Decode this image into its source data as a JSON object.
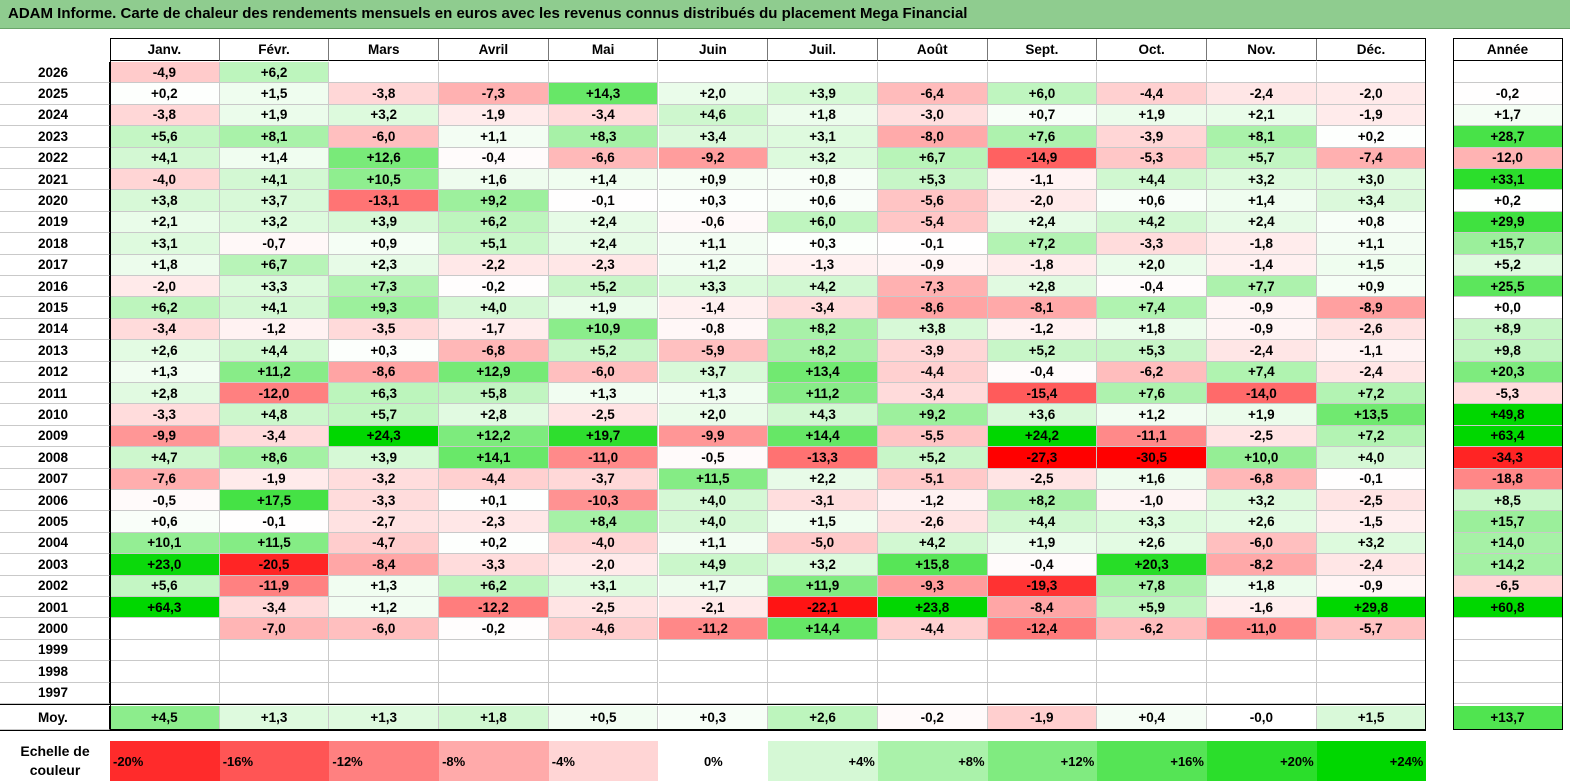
{
  "title": "ADAM Informe. Carte de chaleur des rendements mensuels en euros avec les revenus connus distribués du placement Mega Financial",
  "chart_data": {
    "type": "heatmap",
    "title": "ADAM Informe. Carte de chaleur des rendements mensuels en euros avec les revenus connus distribués du placement Mega Financial",
    "months": [
      "Janv.",
      "Févr.",
      "Mars",
      "Avril",
      "Mai",
      "Juin",
      "Juil.",
      "Août",
      "Sept.",
      "Oct.",
      "Nov.",
      "Déc."
    ],
    "year_header": "Année",
    "rows": [
      {
        "year": "2026",
        "months": [
          "-4,9",
          "+6,2",
          "",
          "",
          "",
          "",
          "",
          "",
          "",
          "",
          "",
          ""
        ],
        "annual": ""
      },
      {
        "year": "2025",
        "months": [
          "+0,2",
          "+1,5",
          "-3,8",
          "-7,3",
          "+14,3",
          "+2,0",
          "+3,9",
          "-6,4",
          "+6,0",
          "-4,4",
          "-2,4",
          "-2,0"
        ],
        "annual": "-0,2"
      },
      {
        "year": "2024",
        "months": [
          "-3,8",
          "+1,9",
          "+3,2",
          "-1,9",
          "-3,4",
          "+4,6",
          "+1,8",
          "-3,0",
          "+0,7",
          "+1,9",
          "+2,1",
          "-1,9"
        ],
        "annual": "+1,7"
      },
      {
        "year": "2023",
        "months": [
          "+5,6",
          "+8,1",
          "-6,0",
          "+1,1",
          "+8,3",
          "+3,4",
          "+3,1",
          "-8,0",
          "+7,6",
          "-3,9",
          "+8,1",
          "+0,2"
        ],
        "annual": "+28,7"
      },
      {
        "year": "2022",
        "months": [
          "+4,1",
          "+1,4",
          "+12,6",
          "-0,4",
          "-6,6",
          "-9,2",
          "+3,2",
          "+6,7",
          "-14,9",
          "-5,3",
          "+5,7",
          "-7,4"
        ],
        "annual": "-12,0"
      },
      {
        "year": "2021",
        "months": [
          "-4,0",
          "+4,1",
          "+10,5",
          "+1,6",
          "+1,4",
          "+0,9",
          "+0,8",
          "+5,3",
          "-1,1",
          "+4,4",
          "+3,2",
          "+3,0"
        ],
        "annual": "+33,1"
      },
      {
        "year": "2020",
        "months": [
          "+3,8",
          "+3,7",
          "-13,1",
          "+9,2",
          "-0,1",
          "+0,3",
          "+0,6",
          "-5,6",
          "-2,0",
          "+0,6",
          "+1,4",
          "+3,4"
        ],
        "annual": "+0,2"
      },
      {
        "year": "2019",
        "months": [
          "+2,1",
          "+3,2",
          "+3,9",
          "+6,2",
          "+2,4",
          "-0,6",
          "+6,0",
          "-5,4",
          "+2,4",
          "+4,2",
          "+2,4",
          "+0,8"
        ],
        "annual": "+29,9"
      },
      {
        "year": "2018",
        "months": [
          "+3,1",
          "-0,7",
          "+0,9",
          "+5,1",
          "+2,4",
          "+1,1",
          "+0,3",
          "-0,1",
          "+7,2",
          "-3,3",
          "-1,8",
          "+1,1"
        ],
        "annual": "+15,7"
      },
      {
        "year": "2017",
        "months": [
          "+1,8",
          "+6,7",
          "+2,3",
          "-2,2",
          "-2,3",
          "+1,2",
          "-1,3",
          "-0,9",
          "-1,8",
          "+2,0",
          "-1,4",
          "+1,5"
        ],
        "annual": "+5,2"
      },
      {
        "year": "2016",
        "months": [
          "-2,0",
          "+3,3",
          "+7,3",
          "-0,2",
          "+5,2",
          "+3,3",
          "+4,2",
          "-7,3",
          "+2,8",
          "-0,4",
          "+7,7",
          "+0,9"
        ],
        "annual": "+25,5"
      },
      {
        "year": "2015",
        "months": [
          "+6,2",
          "+4,1",
          "+9,3",
          "+4,0",
          "+1,9",
          "-1,4",
          "-3,4",
          "-8,6",
          "-8,1",
          "+7,4",
          "-0,9",
          "-8,9"
        ],
        "annual": "+0,0"
      },
      {
        "year": "2014",
        "months": [
          "-3,4",
          "-1,2",
          "-3,5",
          "-1,7",
          "+10,9",
          "-0,8",
          "+8,2",
          "+3,8",
          "-1,2",
          "+1,8",
          "-0,9",
          "-2,6"
        ],
        "annual": "+8,9"
      },
      {
        "year": "2013",
        "months": [
          "+2,6",
          "+4,4",
          "+0,3",
          "-6,8",
          "+5,2",
          "-5,9",
          "+8,2",
          "-3,9",
          "+5,2",
          "+5,3",
          "-2,4",
          "-1,1"
        ],
        "annual": "+9,8"
      },
      {
        "year": "2012",
        "months": [
          "+1,3",
          "+11,2",
          "-8,6",
          "+12,9",
          "-6,0",
          "+3,7",
          "+13,4",
          "-4,4",
          "-0,4",
          "-6,2",
          "+7,4",
          "-2,4"
        ],
        "annual": "+20,3"
      },
      {
        "year": "2011",
        "months": [
          "+2,8",
          "-12,0",
          "+6,3",
          "+5,8",
          "+1,3",
          "+1,3",
          "+11,2",
          "-3,4",
          "-15,4",
          "+7,6",
          "-14,0",
          "+7,2"
        ],
        "annual": "-5,3"
      },
      {
        "year": "2010",
        "months": [
          "-3,3",
          "+4,8",
          "+5,7",
          "+2,8",
          "-2,5",
          "+2,0",
          "+4,3",
          "+9,2",
          "+3,6",
          "+1,2",
          "+1,9",
          "+13,5"
        ],
        "annual": "+49,8"
      },
      {
        "year": "2009",
        "months": [
          "-9,9",
          "-3,4",
          "+24,3",
          "+12,2",
          "+19,7",
          "-9,9",
          "+14,4",
          "-5,5",
          "+24,2",
          "-11,1",
          "-2,5",
          "+7,2"
        ],
        "annual": "+63,4"
      },
      {
        "year": "2008",
        "months": [
          "+4,7",
          "+8,6",
          "+3,9",
          "+14,1",
          "-11,0",
          "-0,5",
          "-13,3",
          "+5,2",
          "-27,3",
          "-30,5",
          "+10,0",
          "+4,0"
        ],
        "annual": "-34,3"
      },
      {
        "year": "2007",
        "months": [
          "-7,6",
          "-1,9",
          "-3,2",
          "-4,4",
          "-3,7",
          "+11,5",
          "+2,2",
          "-5,1",
          "-2,5",
          "+1,6",
          "-6,8",
          "-0,1"
        ],
        "annual": "-18,8"
      },
      {
        "year": "2006",
        "months": [
          "-0,5",
          "+17,5",
          "-3,3",
          "+0,1",
          "-10,3",
          "+4,0",
          "-3,1",
          "-1,2",
          "+8,2",
          "-1,0",
          "+3,2",
          "-2,5"
        ],
        "annual": "+8,5"
      },
      {
        "year": "2005",
        "months": [
          "+0,6",
          "-0,1",
          "-2,7",
          "-2,3",
          "+8,4",
          "+4,0",
          "+1,5",
          "-2,6",
          "+4,4",
          "+3,3",
          "+2,6",
          "-1,5"
        ],
        "annual": "+15,7"
      },
      {
        "year": "2004",
        "months": [
          "+10,1",
          "+11,5",
          "-4,7",
          "+0,2",
          "-4,0",
          "+1,1",
          "-5,0",
          "+4,2",
          "+1,9",
          "+2,6",
          "-6,0",
          "+3,2"
        ],
        "annual": "+14,0"
      },
      {
        "year": "2003",
        "months": [
          "+23,0",
          "-20,5",
          "-8,4",
          "-3,3",
          "-2,0",
          "+4,9",
          "+3,2",
          "+15,8",
          "-0,4",
          "+20,3",
          "-8,2",
          "-2,4"
        ],
        "annual": "+14,2"
      },
      {
        "year": "2002",
        "months": [
          "+5,6",
          "-11,9",
          "+1,3",
          "+6,2",
          "+3,1",
          "+1,7",
          "+11,9",
          "-9,3",
          "-19,3",
          "+7,8",
          "+1,8",
          "-0,9"
        ],
        "annual": "-6,5"
      },
      {
        "year": "2001",
        "months": [
          "+64,3",
          "-3,4",
          "+1,2",
          "-12,2",
          "-2,5",
          "-2,1",
          "-22,1",
          "+23,8",
          "-8,4",
          "+5,9",
          "-1,6",
          "+29,8"
        ],
        "annual": "+60,8"
      },
      {
        "year": "2000",
        "months": [
          "",
          "-7,0",
          "-6,0",
          "-0,2",
          "-4,6",
          "-11,2",
          "+14,4",
          "-4,4",
          "-12,4",
          "-6,2",
          "-11,0",
          "-5,7"
        ],
        "annual": ""
      },
      {
        "year": "1999",
        "months": [
          "",
          "",
          "",
          "",
          "",
          "",
          "",
          "",
          "",
          "",
          "",
          ""
        ],
        "annual": ""
      },
      {
        "year": "1998",
        "months": [
          "",
          "",
          "",
          "",
          "",
          "",
          "",
          "",
          "",
          "",
          "",
          ""
        ],
        "annual": ""
      },
      {
        "year": "1997",
        "months": [
          "",
          "",
          "",
          "",
          "",
          "",
          "",
          "",
          "",
          "",
          "",
          ""
        ],
        "annual": ""
      }
    ],
    "average": {
      "label": "Moy.",
      "months": [
        "+4,5",
        "+1,3",
        "+1,3",
        "+1,8",
        "+0,5",
        "+0,3",
        "+2,6",
        "-0,2",
        "-1,9",
        "+0,4",
        "-0,0",
        "+1,5"
      ],
      "annual": "+13,7"
    },
    "scale": {
      "label": "Echelle de couleur",
      "steps": [
        "-20%",
        "-16%",
        "-12%",
        "-8%",
        "-4%",
        "0%",
        "+4%",
        "+8%",
        "+12%",
        "+16%",
        "+20%",
        "+24%"
      ],
      "values": [
        -20,
        -16,
        -12,
        -8,
        -4,
        0,
        4,
        8,
        12,
        16,
        20,
        24
      ]
    },
    "colors": {
      "negative_max": "#ff0000",
      "positive_max": "#00cc00",
      "neutral": "#ffffff",
      "title_bg": "#8fcc8f"
    }
  }
}
